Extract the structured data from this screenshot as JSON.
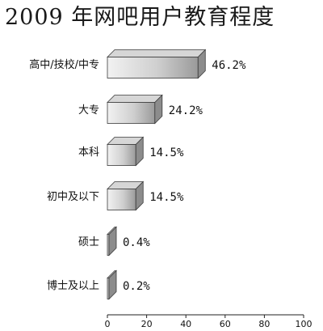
{
  "chart_data": {
    "type": "bar",
    "orientation": "horizontal",
    "title": "2009 年网吧用户教育程度",
    "categories": [
      "高中/技校/中专",
      "大专",
      "本科",
      "初中及以下",
      "硕士",
      "博士及以上"
    ],
    "values": [
      46.2,
      24.2,
      14.5,
      14.5,
      0.4,
      0.2
    ],
    "value_labels": [
      "46.2%",
      "24.2%",
      "14.5%",
      "14.5%",
      "0.4%",
      "0.2%"
    ],
    "xlim": [
      0,
      100
    ],
    "x_ticks": [
      0,
      20,
      40,
      60,
      80,
      100
    ],
    "x_tick_labels": [
      "0",
      "20",
      "40",
      "60",
      "80",
      "100"
    ],
    "grid": false,
    "legend": "none",
    "colors": {
      "bar_front_light": "#f2f2f2",
      "bar_front_dark": "#9a9a9a",
      "bar_top": "#d6d6d6",
      "bar_side": "#8c8c8c",
      "outline": "#3a3a3a",
      "axis": "#222222"
    }
  }
}
